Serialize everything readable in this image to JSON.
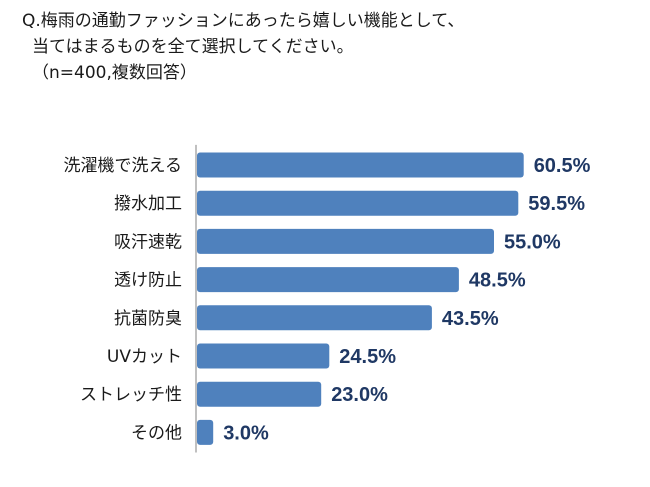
{
  "question": {
    "line1": "Q.梅雨の通勤ファッションにあったら嬉しい機能として、",
    "line2": "当てはまるものを全て選択してください。",
    "line3": "（n=400,複数回答）"
  },
  "colors": {
    "bar": "#4f81bd",
    "value_text": "#1f3864",
    "axis": "#808080"
  },
  "chart_data": {
    "type": "bar",
    "orientation": "horizontal",
    "categories": [
      "洗濯機で洗える",
      "撥水加工",
      "吸汗速乾",
      "透け防止",
      "抗菌防臭",
      "UVカット",
      "ストレッチ性",
      "その他"
    ],
    "values": [
      60.5,
      59.5,
      55.0,
      48.5,
      43.5,
      24.5,
      23.0,
      3.0
    ],
    "value_labels": [
      "60.5%",
      "59.5%",
      "55.0%",
      "48.5%",
      "43.5%",
      "24.5%",
      "23.0%",
      "3.0%"
    ],
    "unit": "%",
    "xlim": [
      0,
      100
    ],
    "grid": false,
    "legend": "none"
  }
}
